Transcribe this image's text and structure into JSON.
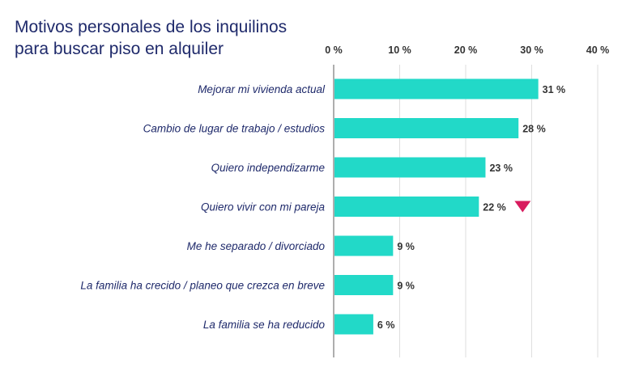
{
  "chart_data": {
    "type": "bar",
    "orientation": "horizontal",
    "title": [
      "Motivos personales de los inquilinos",
      "para buscar piso en alquiler"
    ],
    "categories": [
      "Mejorar mi vivienda actual",
      "Cambio de lugar de trabajo / estudios",
      "Quiero independizarme",
      "Quiero vivir con mi pareja",
      "Me he separado / divorciado",
      "La familia ha crecido / planeo que crezca en breve",
      "La familia se ha reducido"
    ],
    "values": [
      31,
      28,
      23,
      22,
      9,
      9,
      6
    ],
    "value_labels": [
      "31 %",
      "28 %",
      "23 %",
      "22 %",
      "9 %",
      "9 %",
      "6 %"
    ],
    "xlim": [
      0,
      40
    ],
    "ticks": [
      0,
      10,
      20,
      30,
      40
    ],
    "tick_labels": [
      "0 %",
      "10 %",
      "20 %",
      "30 %",
      "40 %"
    ],
    "axis_position": "top",
    "grid": true,
    "bar_color": "#22d9c8",
    "markers": [
      {
        "category": "Quiero vivir con mi pareja",
        "symbol": "down-triangle",
        "color": "#d81b5e"
      }
    ]
  }
}
